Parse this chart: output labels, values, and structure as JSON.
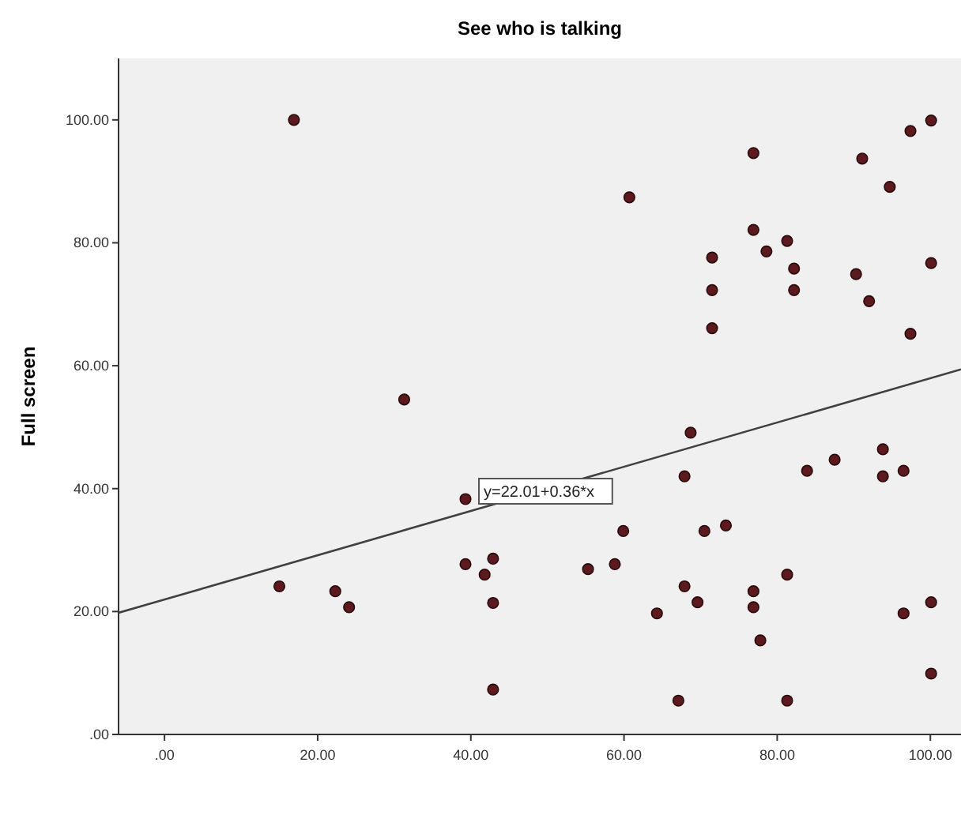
{
  "chart_data": {
    "type": "scatter",
    "title": "See who is talking",
    "ylabel": "Full screen",
    "xlim": [
      -6,
      104
    ],
    "ylim": [
      0,
      110
    ],
    "xticks": [
      {
        "value": 0,
        "label": ".00"
      },
      {
        "value": 20,
        "label": "20.00"
      },
      {
        "value": 40,
        "label": "40.00"
      },
      {
        "value": 60,
        "label": "60.00"
      },
      {
        "value": 80,
        "label": "80.00"
      },
      {
        "value": 100,
        "label": "100.00"
      }
    ],
    "yticks": [
      {
        "value": 0,
        "label": ".00"
      },
      {
        "value": 20,
        "label": "20.00"
      },
      {
        "value": 40,
        "label": "40.00"
      },
      {
        "value": 60,
        "label": "60.00"
      },
      {
        "value": 80,
        "label": "80.00"
      },
      {
        "value": 100,
        "label": "100.00"
      }
    ],
    "grid": false,
    "marker": "circle",
    "annotations": [
      "y=22.01+0.36*x"
    ],
    "series": [
      {
        "color": "#5c1a1e",
        "x": [
          16.9,
          31.3,
          39.3,
          15.0,
          22.3,
          24.1,
          39.3,
          42.9,
          41.8,
          42.9,
          42.9,
          60.7,
          76.9,
          91.1,
          97.4,
          100.1,
          94.7,
          76.9,
          81.3,
          78.6,
          71.5,
          82.2,
          71.5,
          82.2,
          100.1,
          90.3,
          92.0,
          71.5,
          97.4,
          68.7,
          67.9,
          83.9,
          87.5,
          93.8,
          93.8,
          96.5,
          59.9,
          70.5,
          73.3,
          55.3,
          58.8,
          81.3,
          67.9,
          69.6,
          64.3,
          76.9,
          76.9,
          77.8,
          96.5,
          100.1,
          100.1,
          67.1,
          81.3
        ],
        "values": [
          100,
          54.5,
          38.3,
          24.1,
          23.3,
          20.7,
          27.7,
          28.6,
          26.0,
          21.4,
          7.3,
          87.4,
          94.6,
          93.7,
          98.2,
          99.9,
          89.1,
          82.1,
          80.3,
          78.6,
          77.6,
          75.8,
          72.3,
          72.3,
          76.7,
          74.9,
          70.5,
          66.1,
          65.2,
          49.1,
          42.0,
          42.9,
          44.7,
          46.4,
          42.0,
          42.9,
          33.1,
          33.1,
          34.0,
          26.9,
          27.7,
          26.0,
          24.1,
          21.5,
          19.7,
          23.3,
          20.7,
          15.3,
          19.7,
          21.5,
          9.9,
          5.5,
          5.5
        ]
      },
      {
        "type": "line",
        "color": "#404040",
        "marker": "none",
        "x": [
          -6,
          104
        ],
        "values": [
          19.8,
          59.4
        ]
      }
    ]
  }
}
